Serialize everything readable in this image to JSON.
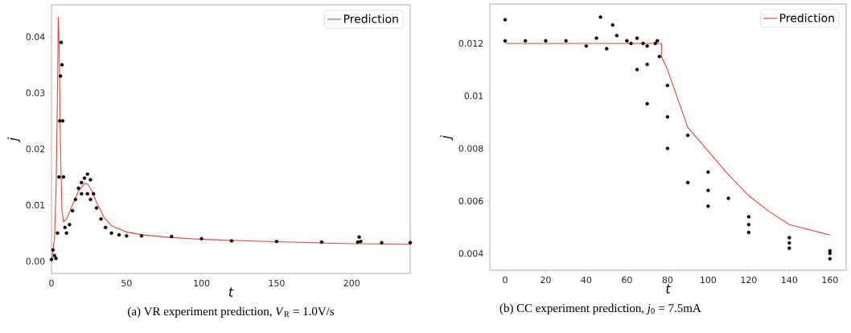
{
  "chart_data": [
    {
      "type": "scatter",
      "title": "(a) VR experiment prediction, *V*$_{R}$ = 1.0V/s",
      "xlabel": "t",
      "ylabel": "j",
      "xlim": [
        0,
        239
      ],
      "ylim": [
        -0.0022,
        0.0457
      ],
      "xticks": [
        0,
        50,
        100,
        150,
        200
      ],
      "yticks": [
        {
          "value": 0,
          "label": "0.00"
        },
        0.01,
        0.02,
        0.03,
        0.04
      ],
      "legend": "top right",
      "series": [
        {
          "marker": "circle",
          "color": "#000000",
          "x": [
            0,
            1,
            2,
            3,
            4,
            5,
            5.5,
            6,
            6.5,
            7,
            7.5,
            8,
            9,
            10,
            12,
            14,
            16,
            18,
            20,
            20,
            22,
            24,
            24,
            26,
            26,
            28,
            30,
            33,
            36,
            40,
            45,
            50,
            60,
            80,
            100,
            120,
            150,
            180,
            204,
            205,
            206,
            220,
            239
          ],
          "values": [
            0.0003,
            0.002,
            0.001,
            0.0005,
            0.005,
            0.015,
            0.025,
            0.033,
            0.039,
            0.035,
            0.025,
            0.015,
            0.006,
            0.005,
            0.0065,
            0.009,
            0.011,
            0.013,
            0.014,
            0.012,
            0.0148,
            0.0155,
            0.012,
            0.0145,
            0.011,
            0.012,
            0.0095,
            0.0075,
            0.006,
            0.005,
            0.0047,
            0.0045,
            0.0045,
            0.0044,
            0.004,
            0.0036,
            0.0035,
            0.0034,
            0.0034,
            0.0043,
            0.0035,
            0.0033,
            0.0033
          ]
        },
        {
          "type": "line",
          "name": "Prediction",
          "color": "#ee4433",
          "x": [
            0,
            2,
            3,
            4,
            4.5,
            5,
            6,
            7,
            8,
            10,
            14,
            18,
            22,
            24,
            27,
            30,
            35,
            40,
            50,
            60,
            80,
            100,
            130,
            160,
            200,
            239
          ],
          "values": [
            0,
            0.004,
            0.012,
            0.03,
            0.0435,
            0.04,
            0.02,
            0.009,
            0.007,
            0.0075,
            0.01,
            0.0125,
            0.0138,
            0.0138,
            0.0125,
            0.0105,
            0.0078,
            0.0063,
            0.0052,
            0.0047,
            0.0042,
            0.0039,
            0.0036,
            0.0034,
            0.0031,
            0.003
          ]
        }
      ]
    },
    {
      "type": "scatter",
      "title": "(b) CC experiment prediction, *j*$_{0}$ = 7.5mA",
      "xlabel": "t",
      "ylabel": "j",
      "xlim": [
        -7.5,
        168
      ],
      "ylim": [
        0.00336,
        0.0135
      ],
      "xticks": [
        0,
        20,
        40,
        60,
        80,
        100,
        120,
        140,
        160
      ],
      "yticks": [
        0.004,
        0.006,
        0.008,
        0.01,
        0.012
      ],
      "legend": "top right",
      "series": [
        {
          "marker": "circle",
          "color": "#000000",
          "x": [
            0,
            0,
            10,
            20,
            30,
            40,
            45,
            47,
            50,
            53,
            55,
            60,
            65,
            70,
            75,
            62,
            65,
            70,
            80,
            90,
            100,
            120,
            140,
            160,
            68,
            70,
            80,
            100,
            120,
            140,
            160,
            74,
            76,
            80,
            90,
            100,
            110,
            120,
            140,
            160
          ],
          "values": [
            0.0121,
            0.0129,
            0.0121,
            0.0121,
            0.0121,
            0.0119,
            0.0122,
            0.013,
            0.0118,
            0.0127,
            0.0123,
            0.0121,
            0.0122,
            0.0119,
            0.0121,
            0.012,
            0.011,
            0.0097,
            0.008,
            0.0067,
            0.0058,
            0.0048,
            0.0042,
            0.0038,
            0.012,
            0.0112,
            0.0092,
            0.0064,
            0.0051,
            0.0044,
            0.004,
            0.012,
            0.0115,
            0.0104,
            0.0085,
            0.0071,
            0.0061,
            0.0054,
            0.0046,
            0.0041
          ]
        },
        {
          "type": "line",
          "name": "Prediction",
          "color": "#ee4433",
          "x": [
            0,
            77,
            77,
            80,
            85,
            90,
            100,
            110,
            120,
            130,
            140,
            150,
            160
          ],
          "values": [
            0.012,
            0.012,
            0.0115,
            0.011,
            0.0099,
            0.0088,
            0.0079,
            0.007,
            0.0062,
            0.0056,
            0.0051,
            0.0049,
            0.0047
          ]
        }
      ]
    }
  ]
}
